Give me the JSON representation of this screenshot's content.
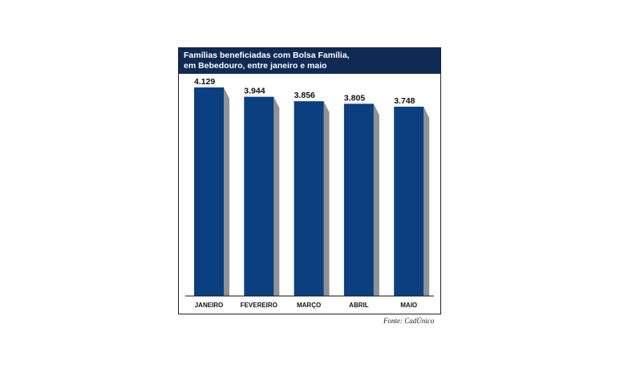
{
  "chart_data": {
    "type": "bar",
    "title": [
      "Famílias beneficiadas com Bolsa Família,",
      "em Bebedouro, entre janeiro e maio"
    ],
    "categories": [
      "JANEIRO",
      "FEVEREIRO",
      "MARÇO",
      "ABRIL",
      "MAIO"
    ],
    "values": [
      4129,
      3944,
      3856,
      3805,
      3748
    ],
    "value_labels": [
      "4.129",
      "3.944",
      "3.856",
      "3.805",
      "3.748"
    ],
    "ylim": [
      0,
      4129
    ],
    "grid": false,
    "legend": "none",
    "colors": {
      "bar": "#0a3f80",
      "shadow": "#8f9294",
      "header": "#0f2a55"
    }
  },
  "source": "Fonte: CadÚnico"
}
